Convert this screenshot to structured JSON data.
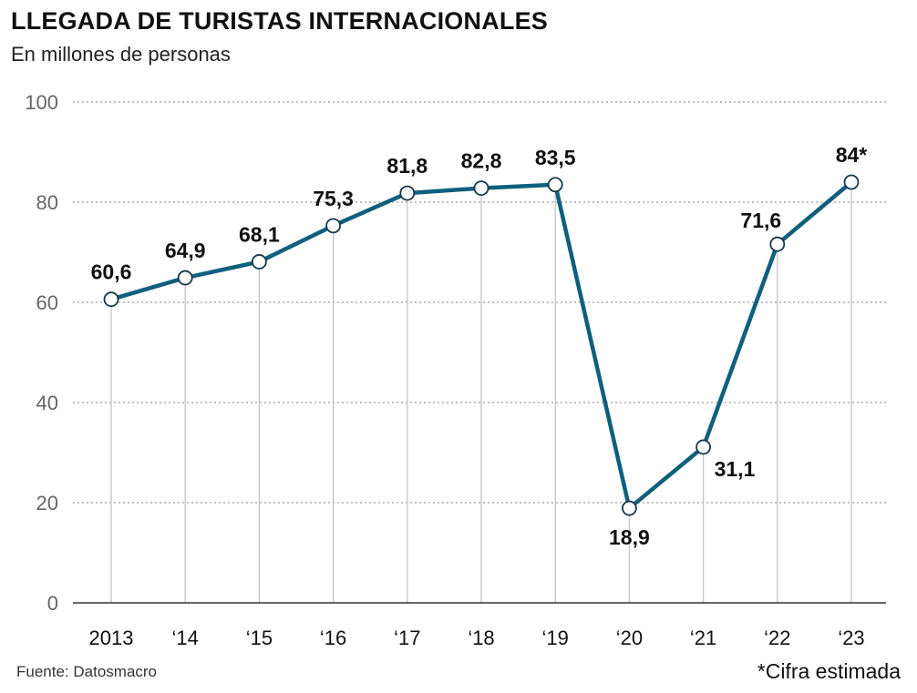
{
  "chart_data": {
    "type": "line",
    "title": "LLEGADA DE TURISTAS INTERNACIONALES",
    "subtitle": "En millones de personas",
    "categories": [
      "2013",
      "‘14",
      "‘15",
      "‘16",
      "‘17",
      "‘18",
      "‘19",
      "‘20",
      "‘21",
      "‘22",
      "‘23"
    ],
    "series": [
      {
        "values": [
          60.6,
          64.9,
          68.1,
          75.3,
          81.8,
          82.8,
          83.5,
          18.9,
          31.1,
          71.6,
          84
        ],
        "labels": [
          "60,6",
          "64,9",
          "68,1",
          "75,3",
          "81,8",
          "82,8",
          "83,5",
          "18,9",
          "31,1",
          "71,6",
          "84*"
        ],
        "color": "#0f5f7d"
      }
    ],
    "yticks": [
      0,
      20,
      40,
      60,
      80,
      100
    ],
    "ylim": [
      0,
      100
    ],
    "grid": true,
    "source": "Fuente: Datosmacro",
    "footnote": "*Cifra estimada"
  }
}
